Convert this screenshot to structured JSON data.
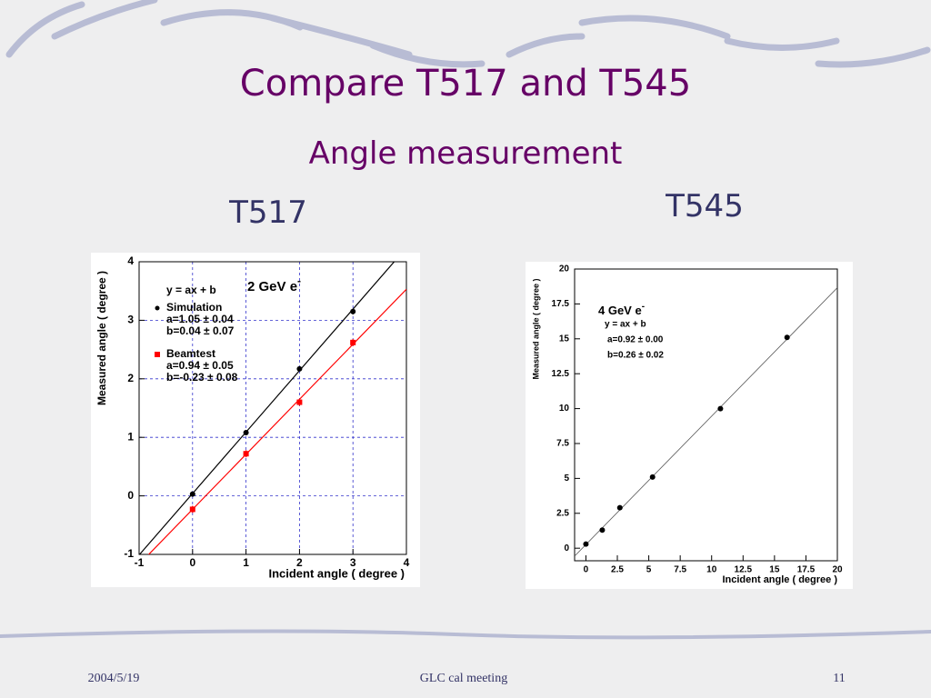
{
  "header": {
    "title": "Compare T517 and T545",
    "subtitle": "Angle measurement"
  },
  "footer": {
    "date": "2004/5/19",
    "event": "GLC cal meeting",
    "page": "11"
  },
  "chart_data": [
    {
      "type": "scatter",
      "heading": "T517",
      "annotation": "2 GeV e",
      "annotation_sup": "-",
      "fit_text": "y = ax + b",
      "xlabel": "Incident angle ( degree )",
      "ylabel": "Measured angle ( degree )",
      "xlim": [
        -1,
        4
      ],
      "ylim": [
        -1,
        4
      ],
      "xticks": [
        -1,
        0,
        1,
        2,
        3,
        4
      ],
      "yticks": [
        -1,
        0,
        1,
        2,
        3,
        4
      ],
      "grid": true,
      "series": [
        {
          "name": "Simulation",
          "color": "#000000",
          "marker": "circle",
          "x": [
            0,
            1,
            2,
            3
          ],
          "values": [
            0.03,
            1.08,
            2.17,
            3.15
          ],
          "errors": [
            0.04,
            0.04,
            0.04,
            0.05
          ],
          "fit_a": 1.05,
          "fit_b": 0.04,
          "fit_labels": [
            "a=1.05 ± 0.04",
            "b=0.04 ± 0.07"
          ]
        },
        {
          "name": "Beamtest",
          "color": "#ff0000",
          "marker": "square",
          "x": [
            0,
            1,
            2,
            3
          ],
          "values": [
            -0.23,
            0.72,
            1.6,
            2.62
          ],
          "errors": [
            0.06,
            0.06,
            0.06,
            0.06
          ],
          "fit_a": 0.94,
          "fit_b": -0.23,
          "fit_labels": [
            "a=0.94 ± 0.05",
            "b=-0.23 ± 0.08"
          ]
        }
      ]
    },
    {
      "type": "scatter",
      "heading": "T545",
      "annotation": "4 GeV e",
      "annotation_sup": "-",
      "fit_text": "y = ax + b",
      "xlabel": "Incident angle ( degree )",
      "ylabel": "Measured angle ( degree )",
      "xlim": [
        -0.9,
        20
      ],
      "ylim": [
        -0.9,
        20
      ],
      "xticks": [
        0,
        2.5,
        5,
        7.5,
        10,
        12.5,
        15,
        17.5,
        20
      ],
      "yticks": [
        0,
        2.5,
        5,
        7.5,
        10,
        12.5,
        15,
        17.5,
        20
      ],
      "grid": false,
      "series": [
        {
          "color": "#000000",
          "marker": "circle",
          "x": [
            0,
            1.3,
            2.7,
            5.3,
            10.7,
            16
          ],
          "values": [
            0.3,
            1.3,
            2.9,
            5.1,
            10,
            15.1
          ],
          "fit_a": 0.92,
          "fit_b": 0.26,
          "fit_color": "#555555",
          "fit_labels": [
            "a=0.92 ± 0.00",
            "b=0.26 ± 0.02"
          ]
        }
      ]
    }
  ]
}
